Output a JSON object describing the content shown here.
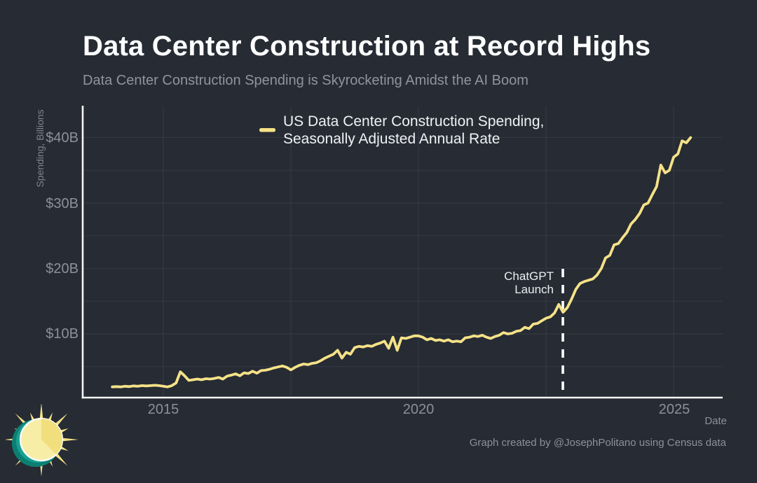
{
  "chart_data": {
    "type": "line",
    "title": "Data Center Construction at Record Highs",
    "subtitle": "Data Center Construction Spending is Skyrocketing Amidst the AI Boom",
    "ylabel": "Spending, Billions",
    "xlabel": "Date",
    "y_ticks": [
      "$10B",
      "$20B",
      "$30B",
      "$40B"
    ],
    "x_ticks": [
      "2015",
      "2020",
      "2025"
    ],
    "ylim": [
      0,
      44.8
    ],
    "xlim_years": [
      2013.4,
      2026.0
    ],
    "grid": {
      "y_step_billions": 5,
      "x_lines_years": [
        2015,
        2017.5,
        2020,
        2022.5,
        2025
      ]
    },
    "legend_lines": [
      "US Data Center Construction Spending,",
      "Seasonally Adjusted Annual Rate"
    ],
    "annotation": {
      "lines": [
        "ChatGPT",
        "Launch"
      ],
      "x_year": 2022.83,
      "style": "dashed-vertical-line"
    },
    "series": [
      {
        "name": "US Data Center Construction Spending, Seasonally Adjusted Annual Rate",
        "color": "#f5e287",
        "start_year": 2014,
        "frequency": "monthly",
        "unit": "billions_usd_saar",
        "values": [
          1.9,
          1.95,
          1.9,
          2.0,
          1.95,
          2.05,
          2.0,
          2.1,
          2.05,
          2.1,
          2.15,
          2.1,
          2.0,
          1.9,
          2.1,
          2.5,
          4.2,
          3.6,
          2.9,
          3.0,
          3.1,
          3.0,
          3.15,
          3.1,
          3.2,
          3.35,
          3.1,
          3.55,
          3.7,
          3.9,
          3.6,
          4.05,
          3.95,
          4.3,
          4.0,
          4.4,
          4.45,
          4.6,
          4.8,
          4.95,
          5.1,
          4.9,
          4.5,
          4.9,
          5.2,
          5.4,
          5.3,
          5.5,
          5.6,
          5.9,
          6.3,
          6.6,
          6.9,
          7.5,
          6.3,
          7.2,
          6.9,
          7.9,
          8.1,
          8.0,
          8.2,
          8.1,
          8.4,
          8.6,
          8.9,
          7.8,
          9.5,
          7.5,
          9.4,
          9.3,
          9.5,
          9.7,
          9.7,
          9.5,
          9.1,
          9.3,
          9.0,
          9.1,
          8.9,
          9.1,
          8.8,
          8.9,
          8.8,
          9.4,
          9.5,
          9.7,
          9.6,
          9.8,
          9.5,
          9.3,
          9.6,
          9.8,
          10.2,
          10.0,
          10.1,
          10.4,
          10.5,
          11.0,
          10.8,
          11.5,
          11.6,
          12.0,
          12.4,
          12.6,
          13.2,
          14.5,
          13.3,
          14.0,
          15.3,
          16.8,
          17.7,
          18.0,
          18.2,
          18.4,
          19.0,
          20.0,
          21.6,
          22.0,
          23.6,
          23.8,
          24.7,
          25.5,
          26.8,
          27.5,
          28.4,
          29.7,
          30.0,
          31.3,
          32.5,
          35.8,
          34.6,
          35.0,
          37.0,
          37.5,
          39.5,
          39.2,
          40.0
        ]
      }
    ],
    "colors": {
      "background": "#262b34",
      "line": "#f5e287",
      "gridline": "#353b44",
      "axis_spine": "#f5f5f5",
      "annotation_line": "#ffffff"
    }
  },
  "footer": {
    "credit": "Graph created by @JosephPolitano using Census data"
  },
  "logo": {
    "name": "sun-logo",
    "colors": {
      "teal_dark": "#0c7f72",
      "teal": "#18a090",
      "ray": "#f3e184",
      "disc": "#f8eda6",
      "wedge": "#f1df7d",
      "ring": "#ffffff"
    }
  }
}
